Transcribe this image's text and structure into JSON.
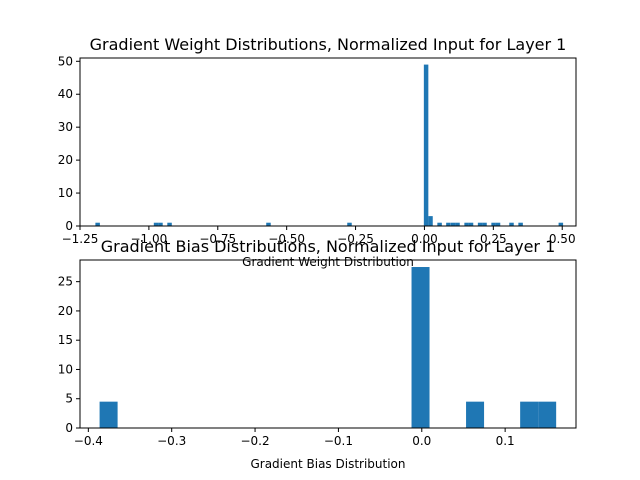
{
  "chart_data": [
    {
      "type": "histogram",
      "title": "Gradient Weight Distributions, Normalized Input for Layer 1",
      "xlabel": "Gradient Weight Distribution",
      "ylabel": "",
      "xlim": [
        -1.25,
        0.55
      ],
      "ylim": [
        0,
        51
      ],
      "grid": false,
      "color": "#1f77b4",
      "xticks": [
        -1.25,
        -1.0,
        -0.75,
        -0.5,
        -0.25,
        0.0,
        0.25,
        0.5
      ],
      "xtick_labels": [
        "−1.25",
        "−1.00",
        "−0.75",
        "−0.50",
        "−0.25",
        "0.00",
        "0.25",
        "0.50"
      ],
      "yticks": [
        0,
        10,
        20,
        30,
        40,
        50
      ],
      "ytick_labels": [
        "0",
        "10",
        "20",
        "30",
        "40",
        "50"
      ],
      "bin_width": 0.0163,
      "bins": [
        {
          "x": -1.186,
          "count": 1
        },
        {
          "x": -0.974,
          "count": 1
        },
        {
          "x": -0.958,
          "count": 1
        },
        {
          "x": -0.925,
          "count": 1
        },
        {
          "x": -0.566,
          "count": 1
        },
        {
          "x": -0.272,
          "count": 1
        },
        {
          "x": 0.006,
          "count": 49
        },
        {
          "x": 0.022,
          "count": 3
        },
        {
          "x": 0.055,
          "count": 1
        },
        {
          "x": 0.087,
          "count": 1
        },
        {
          "x": 0.104,
          "count": 1
        },
        {
          "x": 0.12,
          "count": 1
        },
        {
          "x": 0.153,
          "count": 1
        },
        {
          "x": 0.169,
          "count": 1
        },
        {
          "x": 0.202,
          "count": 1
        },
        {
          "x": 0.218,
          "count": 1
        },
        {
          "x": 0.251,
          "count": 1
        },
        {
          "x": 0.267,
          "count": 1
        },
        {
          "x": 0.316,
          "count": 1
        },
        {
          "x": 0.349,
          "count": 1
        },
        {
          "x": 0.495,
          "count": 1
        }
      ]
    },
    {
      "type": "histogram",
      "title": "Gradient Bias Distributions, Normalized Input for Layer 1",
      "xlabel": "Gradient Bias Distribution",
      "ylabel": "",
      "xlim": [
        -0.41,
        0.185
      ],
      "ylim": [
        0,
        28.7
      ],
      "grid": false,
      "color": "#1f77b4",
      "xticks": [
        -0.4,
        -0.3,
        -0.2,
        -0.1,
        0.0,
        0.1
      ],
      "xtick_labels": [
        "−0.4",
        "−0.3",
        "−0.2",
        "−0.1",
        "0.0",
        "0.1"
      ],
      "yticks": [
        0,
        5,
        10,
        15,
        20,
        25
      ],
      "ytick_labels": [
        "0",
        "5",
        "10",
        "15",
        "20",
        "25"
      ],
      "bin_width": 0.0216,
      "bins": [
        {
          "x": -0.3757,
          "count": 4.5
        },
        {
          "x": -0.0015,
          "count": 27.5
        },
        {
          "x": 0.0639,
          "count": 4.5
        },
        {
          "x": 0.1288,
          "count": 4.5
        },
        {
          "x": 0.1504,
          "count": 4.5
        }
      ]
    }
  ]
}
